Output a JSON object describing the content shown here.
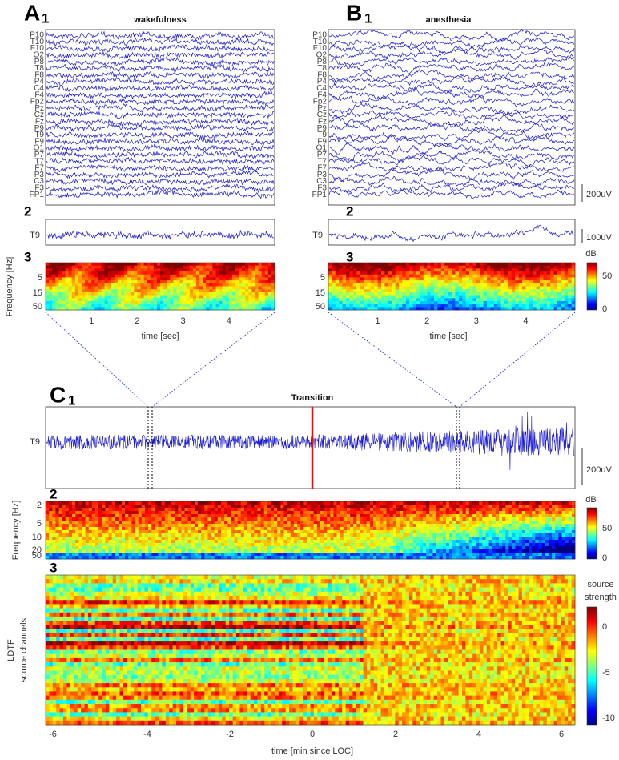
{
  "panels": {
    "A": {
      "letter": "A",
      "index": "1",
      "title": "wakefulness",
      "index2": "2",
      "index3": "3",
      "trace_label": "T9",
      "ylabel": "Frequency [Hz]",
      "freq_ticks": [
        "5",
        "15",
        "50"
      ],
      "time_ticks": [
        "1",
        "2",
        "3",
        "4"
      ],
      "xlabel": "time [sec]"
    },
    "B": {
      "letter": "B",
      "index": "1",
      "title": "anesthesia",
      "index2": "2",
      "index3": "3",
      "trace_label": "T9",
      "scale_eeg": "200uV",
      "scale_trace": "100uV",
      "freq_ticks": [
        "5",
        "15",
        "50"
      ],
      "time_ticks": [
        "1",
        "2",
        "3",
        "4"
      ],
      "xlabel": "time [sec]",
      "colorbar_title": "dB",
      "colorbar_ticks": [
        "50",
        "0"
      ]
    },
    "C": {
      "letter": "C",
      "index": "1",
      "title": "Transition",
      "index2": "2",
      "index3": "3",
      "trace_label": "T9",
      "scale_trace": "200uV",
      "ylabel2": "Frequency [Hz]",
      "freq_ticks": [
        "2",
        "5",
        "10",
        "20",
        "50"
      ],
      "colorbar2_title": "dB",
      "colorbar2_ticks": [
        "50",
        "0"
      ],
      "ylabel3_line1": "LDTF",
      "ylabel3_line2": "source channels",
      "colorbar3_title_line1": "source",
      "colorbar3_title_line2": "strength",
      "colorbar3_ticks": [
        "0",
        "-5",
        "-10"
      ],
      "time_ticks": [
        "-6",
        "-4",
        "-2",
        "0",
        "2",
        "4",
        "6"
      ],
      "xlabel": "time [min since LOC]"
    }
  },
  "channels": [
    "P10",
    "T10",
    "F10",
    "O2",
    "P8",
    "T8",
    "F8",
    "P4",
    "C4",
    "F4",
    "Fp2",
    "Pz",
    "Cz",
    "Fz",
    "P9",
    "T9",
    "F9",
    "O1",
    "P7",
    "T7",
    "F7",
    "P3",
    "C3",
    "F3",
    "FP1"
  ]
}
